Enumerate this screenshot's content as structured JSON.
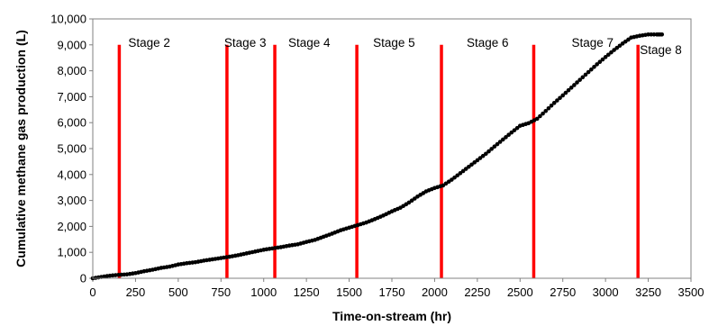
{
  "chart_data": {
    "type": "scatter",
    "xlabel": "Time-on-stream (hr)",
    "ylabel": "Cumulative methane gas production (L)",
    "xlim": [
      0,
      3500
    ],
    "ylim": [
      0,
      10000
    ],
    "x_ticks": [
      "0",
      "250",
      "500",
      "750",
      "1000",
      "1250",
      "1500",
      "1750",
      "2000",
      "2250",
      "2500",
      "2750",
      "3000",
      "3250",
      "3500"
    ],
    "y_ticks": [
      "0",
      "1,000",
      "2,000",
      "3,000",
      "4,000",
      "5,000",
      "6,000",
      "7,000",
      "8,000",
      "9,000",
      "10,000"
    ],
    "grid": false,
    "stage_lines": {
      "color": "#ff0000",
      "top_value": 9000,
      "items": [
        {
          "label": "Stage 2",
          "x": 155
        },
        {
          "label": "Stage 3",
          "x": 785
        },
        {
          "label": "Stage 4",
          "x": 1065
        },
        {
          "label": "Stage 5",
          "x": 1545
        },
        {
          "label": "Stage 6",
          "x": 2040
        },
        {
          "label": "Stage 7",
          "x": 2580
        },
        {
          "label": "Stage 8",
          "x": 3190
        }
      ]
    },
    "series": [
      {
        "marker_color": "#000000",
        "x": [
          0,
          50,
          100,
          150,
          200,
          250,
          300,
          350,
          400,
          450,
          500,
          550,
          600,
          650,
          700,
          750,
          800,
          850,
          900,
          950,
          1000,
          1050,
          1100,
          1150,
          1200,
          1250,
          1300,
          1350,
          1400,
          1450,
          1500,
          1550,
          1600,
          1650,
          1700,
          1750,
          1800,
          1850,
          1900,
          1950,
          2000,
          2050,
          2100,
          2150,
          2200,
          2250,
          2300,
          2350,
          2400,
          2450,
          2500,
          2550,
          2600,
          2650,
          2700,
          2750,
          2800,
          2850,
          2900,
          2950,
          3000,
          3050,
          3100,
          3150,
          3200,
          3250,
          3300,
          3330
        ],
        "y": [
          0,
          50,
          100,
          130,
          150,
          200,
          270,
          330,
          400,
          450,
          530,
          580,
          620,
          680,
          730,
          780,
          830,
          890,
          960,
          1030,
          1100,
          1150,
          1200,
          1260,
          1310,
          1400,
          1480,
          1600,
          1720,
          1850,
          1950,
          2050,
          2150,
          2280,
          2420,
          2580,
          2720,
          2920,
          3150,
          3350,
          3480,
          3580,
          3800,
          4050,
          4300,
          4550,
          4800,
          5080,
          5350,
          5620,
          5880,
          5980,
          6150,
          6450,
          6760,
          7050,
          7350,
          7650,
          7950,
          8250,
          8530,
          8800,
          9050,
          9280,
          9350,
          9400,
          9400,
          9400
        ]
      }
    ]
  }
}
